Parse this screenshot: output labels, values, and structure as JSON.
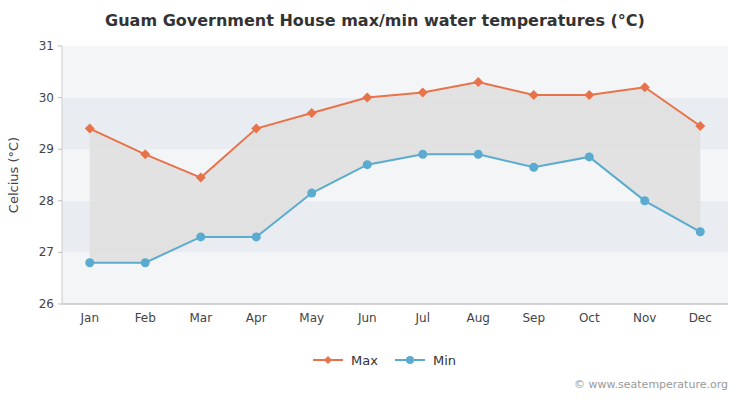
{
  "chart_data": {
    "type": "line",
    "title": "Guam Government House max/min water temperatures (°C)",
    "y_label": "Celcius (°C)",
    "categories": [
      "Jan",
      "Feb",
      "Mar",
      "Apr",
      "May",
      "Jun",
      "Jul",
      "Aug",
      "Sep",
      "Oct",
      "Nov",
      "Dec"
    ],
    "series": [
      {
        "name": "Max",
        "color": "#e8734a",
        "marker": "diamond",
        "values": [
          29.4,
          28.9,
          28.45,
          29.4,
          29.7,
          30.0,
          30.1,
          30.3,
          30.05,
          30.05,
          30.2,
          29.45
        ]
      },
      {
        "name": "Min",
        "color": "#5aabcf",
        "marker": "circle",
        "values": [
          26.8,
          26.8,
          27.3,
          27.3,
          28.15,
          28.7,
          28.9,
          28.9,
          28.65,
          28.85,
          28.0,
          27.4
        ]
      }
    ],
    "ylim": [
      26,
      31
    ],
    "yticks": [
      26,
      27,
      28,
      29,
      30,
      31
    ],
    "legend": "bottom",
    "annotations": [
      "© www.seatemperature.org"
    ]
  }
}
